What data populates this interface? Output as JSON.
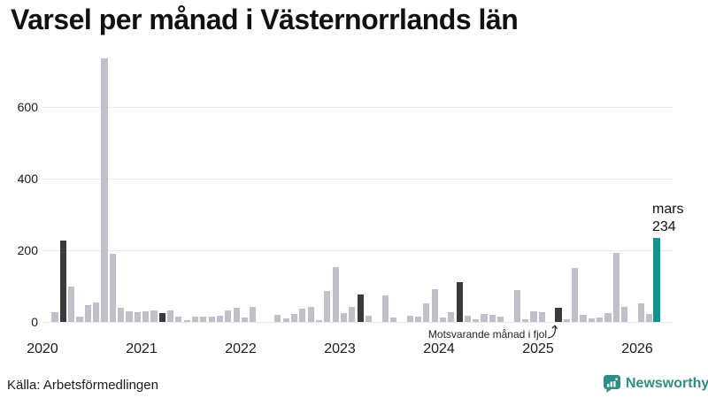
{
  "title": "Varsel per månad i Västernorrlands län",
  "source": "Källa: Arbetsförmedlingen",
  "brand": {
    "name": "Newsworthy",
    "color": "#2f8d87"
  },
  "annotations": {
    "fjol_label": "Motsvarande månad i fjol",
    "current_month_label": "mars",
    "current_month_value": "234"
  },
  "colors": {
    "bar": "#c2bfcb",
    "fjol_bar": "#3a3a3a",
    "current_bar": "#0e948c",
    "gridline": "#e9e8f0"
  },
  "chart_data": {
    "type": "bar",
    "title": "Varsel per månad i Västernorrlands län",
    "xlabel": "",
    "ylabel": "",
    "x_start": "2020-01",
    "x_end": "2026-03",
    "ylim": [
      0,
      750
    ],
    "yticks": [
      "0",
      "200",
      "400",
      "600"
    ],
    "grid": "horizontal",
    "year_labels": [
      "2020",
      "2021",
      "2022",
      "2023",
      "2024",
      "2025",
      "2026"
    ],
    "series": [
      {
        "name": "Varsel per månad",
        "values": [
          0,
          26,
          226,
          100,
          14,
          47,
          55,
          735,
          190,
          40,
          30,
          28,
          30,
          33,
          24,
          33,
          16,
          6,
          15,
          16,
          15,
          18,
          33,
          39,
          12,
          41,
          0,
          0,
          20,
          10,
          22,
          36,
          41,
          6,
          86,
          154,
          25,
          43,
          76,
          17,
          0,
          73,
          12,
          0,
          18,
          16,
          53,
          91,
          12,
          26,
          112,
          18,
          8,
          22,
          20,
          14,
          0,
          90,
          7,
          30,
          26,
          0,
          39,
          8,
          150,
          20,
          10,
          12,
          25,
          192,
          41,
          0,
          52,
          22,
          234
        ]
      }
    ],
    "fjol_indices": [
      2,
      14,
      38,
      50,
      62
    ],
    "fjol_months": [
      "2020-03",
      "2021-03",
      "2023-03",
      "2024-03",
      "2025-03"
    ],
    "current_index": 74,
    "current_month": {
      "month": "mars",
      "year": "2026",
      "value": 234
    }
  }
}
